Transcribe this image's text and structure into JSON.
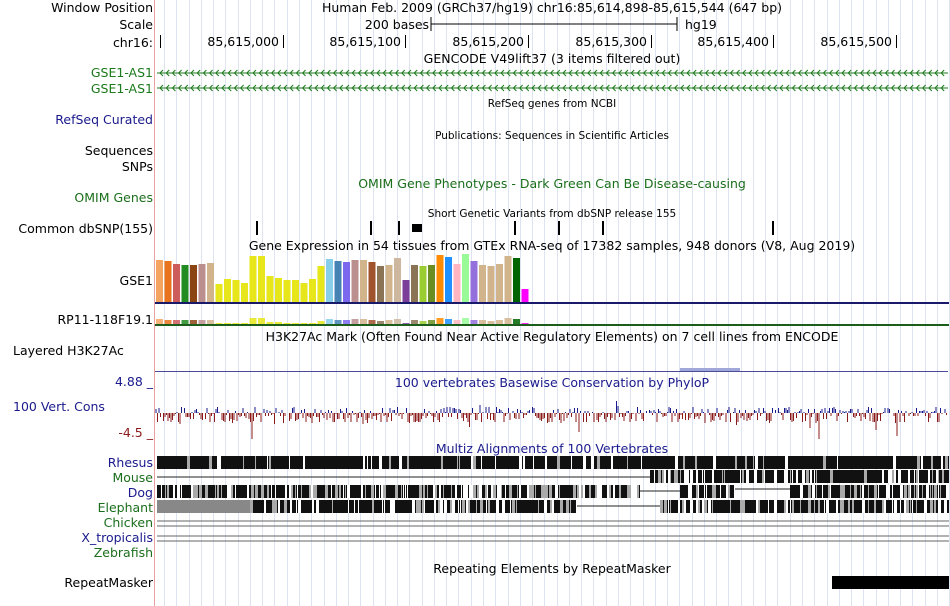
{
  "header": {
    "window_position_label": "Window Position",
    "window_position_value": "Human Feb. 2009 (GRCh37/hg19)   chr16:85,614,898-85,615,544 (647 bp)",
    "scale_label": "Scale",
    "scale_value": "200 bases",
    "scale_assembly": "hg19",
    "chrom_label": "chr16:",
    "positions": [
      "85,615,000",
      "85,615,100",
      "85,615,200",
      "85,615,300",
      "85,615,400",
      "85,615,500"
    ]
  },
  "tracks": {
    "gencode": {
      "title": "GENCODE V49lift37 (3 items filtered out)",
      "items": [
        "GSE1-AS1",
        "GSE1-AS1"
      ],
      "color": "#1b7a1b"
    },
    "refseq": {
      "title": "RefSeq genes from NCBI",
      "label": "RefSeq Curated",
      "color": "#1a1a8c"
    },
    "publications": {
      "title": "Publications: Sequences in Scientific Articles",
      "labels": [
        "Sequences",
        "SNPs"
      ]
    },
    "omim": {
      "title": "OMIM Gene Phenotypes - Dark Green Can Be Disease-causing",
      "label": "OMIM Genes",
      "color": "#1b6e1b"
    },
    "dbsnp": {
      "title": "Short Genetic Variants from dbSNP release 155",
      "label": "Common dbSNP(155)"
    },
    "gtex": {
      "title": "Gene Expression in 54 tissues from GTEx RNA-seq of 17382 samples, 948 donors (V8, Aug 2019)",
      "genes": [
        "GSE1",
        "RP11-118F19.1"
      ],
      "colors": [
        "#f4a460",
        "#e8731c",
        "#cd5c5c",
        "#228b22",
        "#8b4513",
        "#bc8f8f",
        "#d2b48c",
        "#e6e61a",
        "#e6e61a",
        "#e6e61a",
        "#e6e61a",
        "#e6e61a",
        "#e6e61a",
        "#e6e61a",
        "#e6e61a",
        "#e6e61a",
        "#e6e61a",
        "#e6e61a",
        "#e6e61a",
        "#e6e61a",
        "#87ceeb",
        "#4682b4",
        "#7b68ee",
        "#bc8f8f",
        "#d2b48c",
        "#a0522d",
        "#8b7355",
        "#d2b48c",
        "#cdb79e",
        "#7b3f9a",
        "#8b7355",
        "#9acd32",
        "#6b8e23",
        "#ff8c00",
        "#1e90ff",
        "#ffb6c1",
        "#98fb98",
        "#9370db",
        "#d2b48c",
        "#d2b48c",
        "#d2b48c",
        "#d2b48c",
        "#006400",
        "#ff00ff"
      ],
      "values": [
        0.88,
        0.86,
        0.8,
        0.77,
        0.78,
        0.8,
        0.82,
        0.38,
        0.48,
        0.45,
        0.4,
        0.96,
        0.96,
        0.55,
        0.5,
        0.46,
        0.46,
        0.4,
        0.48,
        0.76,
        0.9,
        0.86,
        0.84,
        0.88,
        0.88,
        0.84,
        0.76,
        0.78,
        0.92,
        0.46,
        0.78,
        0.76,
        0.78,
        0.98,
        0.94,
        0.8,
        1.0,
        0.86,
        0.78,
        0.76,
        0.8,
        0.96,
        0.92,
        0.28
      ]
    },
    "h3k27ac": {
      "title": "H3K27Ac Mark (Often Found Near Active Regulatory Elements) on 7 cell lines from ENCODE",
      "label": "Layered H3K27Ac"
    },
    "phylop": {
      "title": "100 vertebrates Basewise Conservation by PhyloP",
      "label": "100 Vert. Cons",
      "max": "4.88 _",
      "min": "-4.5 _",
      "pos_color": "#1a1a8c",
      "neg_color": "#8b1a1a"
    },
    "multiz": {
      "title": "Multiz Alignments of 100 Vertebrates",
      "species": [
        "Rhesus",
        "Mouse",
        "Dog",
        "Elephant",
        "Chicken",
        "X_tropicalis",
        "Zebrafish"
      ],
      "species_colors": [
        "#1a1a8c",
        "#1b6e1b",
        "#1a1a8c",
        "#1b6e1b",
        "#1b6e1b",
        "#1a1a8c",
        "#1b6e1b"
      ]
    },
    "repeatmasker": {
      "title": "Repeating Elements by RepeatMasker",
      "label": "RepeatMasker"
    }
  }
}
